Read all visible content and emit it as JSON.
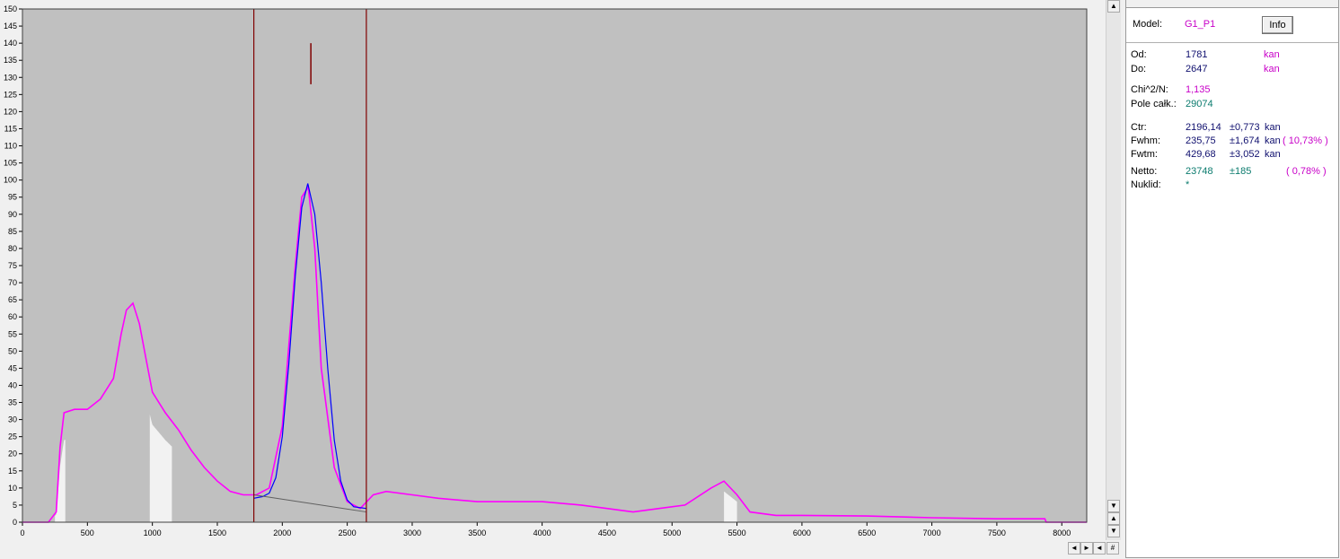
{
  "chart_data": {
    "type": "line",
    "xlim": [
      0,
      8192
    ],
    "ylim": [
      0,
      150
    ],
    "x_ticks": [
      0,
      500,
      1000,
      1500,
      2000,
      2500,
      3000,
      3500,
      4000,
      4500,
      5000,
      5500,
      6000,
      6500,
      7000,
      7500,
      8000
    ],
    "y_ticks": [
      0,
      5,
      10,
      15,
      20,
      25,
      30,
      35,
      40,
      45,
      50,
      55,
      60,
      65,
      70,
      75,
      80,
      85,
      90,
      95,
      100,
      105,
      110,
      115,
      120,
      125,
      130,
      135,
      140,
      145,
      150
    ],
    "series": [
      {
        "color": "#ff00ff",
        "x": [
          0,
          200,
          260,
          290,
          320,
          400,
          500,
          600,
          700,
          760,
          800,
          850,
          900,
          950,
          1000,
          1100,
          1200,
          1300,
          1400,
          1500,
          1600,
          1700,
          1800,
          1900,
          2000,
          2100,
          2150,
          2200,
          2250,
          2300,
          2400,
          2500,
          2600,
          2700,
          2800,
          3000,
          3200,
          3500,
          3800,
          4000,
          4300,
          4500,
          4700,
          4900,
          5100,
          5300,
          5400,
          5500,
          5600,
          5800,
          6000,
          6500,
          7000,
          7500,
          7870,
          7880,
          8192
        ],
        "y": [
          0,
          0,
          3,
          22,
          32,
          33,
          33,
          36,
          42,
          55,
          62,
          64,
          58,
          48,
          38,
          32,
          27,
          21,
          16,
          12,
          9,
          8,
          8,
          10,
          28,
          75,
          95,
          98,
          80,
          45,
          16,
          6,
          4,
          8,
          9,
          8,
          7,
          6,
          6,
          6,
          5,
          4,
          3,
          4,
          5,
          10,
          12,
          8,
          3,
          2,
          2,
          1.8,
          1.3,
          1,
          1,
          0,
          0
        ]
      },
      {
        "color": "#0000ff",
        "x": [
          1781,
          1850,
          1900,
          1950,
          2000,
          2050,
          2100,
          2150,
          2196,
          2250,
          2300,
          2350,
          2400,
          2450,
          2500,
          2550,
          2647
        ],
        "y": [
          7,
          7.5,
          8.5,
          13,
          25,
          46,
          72,
          92,
          99,
          90,
          70,
          45,
          24,
          12,
          6.5,
          4.5,
          4
        ]
      }
    ],
    "fit_baseline": {
      "color": "#606060",
      "x": [
        1781,
        2647
      ],
      "y": [
        8,
        3
      ]
    },
    "roi": {
      "from": 1781,
      "to": 2647,
      "color": "#800000"
    },
    "centroid_marker": {
      "x": 2220,
      "y_from": 128,
      "y_to": 140,
      "color": "#800000"
    },
    "plot_bg": "#c0c0c0",
    "fill_color": "#f2f2f2"
  },
  "panel": {
    "model_label": "Model:",
    "model_value": "G1_P1",
    "info_button": "Info",
    "od_label": "Od:",
    "od_value": "1781",
    "od_unit": "kan",
    "do_label": "Do:",
    "do_value": "2647",
    "do_unit": "kan",
    "chi_label": "Chi^2/N:",
    "chi_value": "1,135",
    "pole_label": "Pole całk.:",
    "pole_value": "29074",
    "ctr_label": "Ctr:",
    "ctr_value": "2196,14",
    "ctr_err": "±0,773",
    "ctr_unit": "kan",
    "fwhm_label": "Fwhm:",
    "fwhm_value": "235,75",
    "fwhm_err": "±1,674",
    "fwhm_unit": "kan",
    "fwhm_pct": "( 10,73% )",
    "fwtm_label": "Fwtm:",
    "fwtm_value": "429,68",
    "fwtm_err": "±3,052",
    "fwtm_unit": "kan",
    "netto_label": "Netto:",
    "netto_value": "23748",
    "netto_err": "±185",
    "netto_pct": "( 0,78% )",
    "nuklid_label": "Nuklid:",
    "nuklid_value": "*"
  },
  "scrollbars": {
    "up_arrow": "▲",
    "down_arrow": "▼",
    "small_up": "▲",
    "small_down": "▼",
    "left_arrow": "◄",
    "right_arrow": "►",
    "corner_glyph": "#"
  }
}
